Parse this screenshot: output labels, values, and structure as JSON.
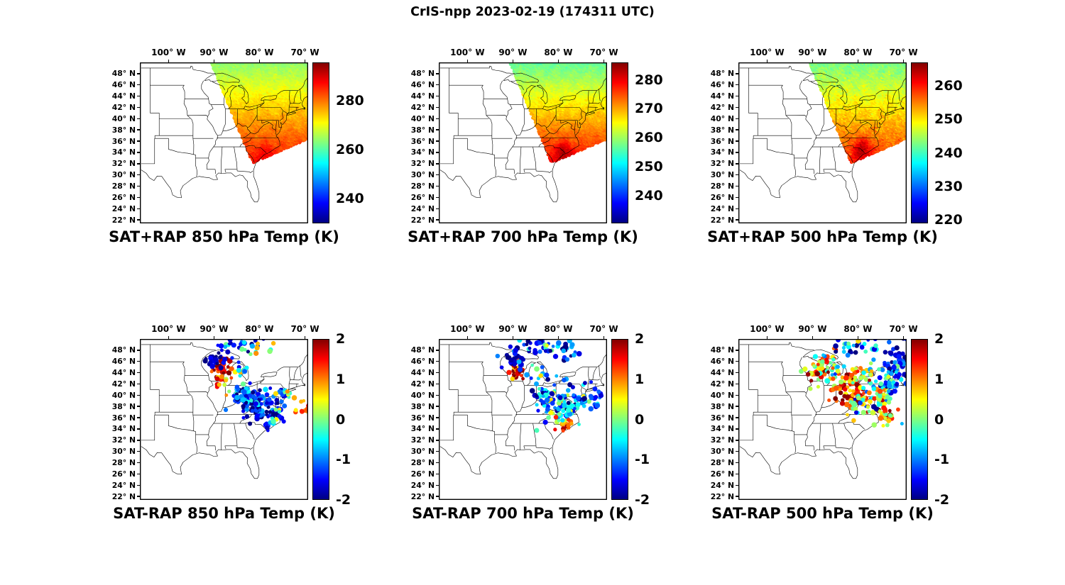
{
  "figure": {
    "title": "CrIS-npp 2023-02-19 (174311 UTC)",
    "background": "#ffffff",
    "text_color": "#000000"
  },
  "axes": {
    "lon_range": [
      -106.3,
      -69.3
    ],
    "lat_range": [
      21.4,
      50.0
    ],
    "x_tick_lons": [
      -100,
      -90,
      -80,
      -70
    ],
    "x_tick_labels": [
      "100° W",
      "90° W",
      "80° W",
      "70° W"
    ],
    "y_tick_lats": [
      48,
      46,
      44,
      42,
      40,
      38,
      36,
      34,
      32,
      30,
      28,
      26,
      24,
      22
    ],
    "y_tick_labels": [
      "48° N",
      "46° N",
      "44° N",
      "42° N",
      "40° N",
      "38° N",
      "36° N",
      "34° N",
      "32° N",
      "30° N",
      "28° N",
      "26° N",
      "24° N",
      "22° N"
    ]
  },
  "chart_data": [
    {
      "id": "sat-plus-rap-850",
      "type": "heatmap",
      "row": 0,
      "col": 0,
      "title": "SAT+RAP 850 hPa Temp (K)",
      "colormap": "jet",
      "clim": [
        230,
        295.5
      ],
      "colorbar_ticks": [
        280,
        260,
        240
      ],
      "swath": {
        "nw": [
          [
            -90.6,
            49.8
          ],
          [
            -83.0,
            35.0
          ]
        ],
        "se": [
          [
            -79.0,
            33.0
          ],
          [
            -67.5,
            37.0
          ]
        ]
      },
      "field": {
        "t_ref": 264.0,
        "lat_ref": 49.8,
        "lapse": 1.3,
        "noise": 1.0,
        "hot": {
          "lon": -78.6,
          "lat": 34.2,
          "amp": 4.0,
          "r": 1.0
        }
      }
    },
    {
      "id": "sat-plus-rap-700",
      "type": "heatmap",
      "row": 0,
      "col": 1,
      "title": "SAT+RAP 700 hPa Temp (K)",
      "colormap": "jet",
      "clim": [
        230.5,
        286
      ],
      "colorbar_ticks": [
        280,
        270,
        260,
        250,
        240
      ],
      "swath": {
        "nw": [
          [
            -90.6,
            49.8
          ],
          [
            -83.0,
            35.0
          ]
        ],
        "se": [
          [
            -79.0,
            33.0
          ],
          [
            -67.5,
            37.0
          ]
        ]
      },
      "field": {
        "t_ref": 257.0,
        "lat_ref": 49.8,
        "lapse": 1.28,
        "noise": 0.9,
        "hot": {
          "lon": -78.8,
          "lat": 34.4,
          "amp": 7.0,
          "r": 1.2
        }
      }
    },
    {
      "id": "sat-plus-rap-500",
      "type": "heatmap",
      "row": 0,
      "col": 2,
      "title": "SAT+RAP 500 hPa Temp (K)",
      "colormap": "jet",
      "clim": [
        219,
        267
      ],
      "colorbar_ticks": [
        260,
        250,
        240,
        230,
        220
      ],
      "swath": {
        "nw": [
          [
            -90.6,
            49.8
          ],
          [
            -83.0,
            35.0
          ]
        ],
        "se": [
          [
            -79.0,
            33.0
          ],
          [
            -67.5,
            37.0
          ]
        ]
      },
      "field": {
        "t_ref": 242.8,
        "lat_ref": 49.8,
        "lapse": 0.93,
        "noise": 1.1,
        "hot": {
          "lon": -79.0,
          "lat": 34.8,
          "amp": 8.0,
          "r": 1.4
        }
      }
    },
    {
      "id": "sat-minus-rap-850",
      "type": "scatter",
      "row": 1,
      "col": 0,
      "title": "SAT-RAP 850 hPa Temp (K)",
      "colormap": "jet",
      "clim": [
        -2,
        2
      ],
      "colorbar_ticks": [
        2,
        1,
        0,
        -1,
        -2
      ],
      "dot_radius_px": 3.1,
      "clusters": [
        {
          "lon": -88.6,
          "lat": 44.5,
          "sx": 1.0,
          "sy": 1.1,
          "n": 45,
          "mean": 1.5,
          "std": 0.5
        },
        {
          "lon": -89.6,
          "lat": 45.9,
          "sx": 1.2,
          "sy": 0.7,
          "n": 22,
          "mean": -1.7,
          "std": 0.3
        },
        {
          "lon": -86.0,
          "lat": 48.7,
          "sx": 2.6,
          "sy": 0.7,
          "n": 24,
          "mean": -1.5,
          "std": 0.6
        },
        {
          "lon": -80.6,
          "lat": 48.5,
          "sx": 1.6,
          "sy": 0.8,
          "n": 14,
          "mean": -0.7,
          "std": 1.0
        },
        {
          "lon": -79.6,
          "lat": 37.9,
          "sx": 2.4,
          "sy": 1.5,
          "n": 100,
          "mean": -1.5,
          "std": 0.45
        },
        {
          "lon": -82.6,
          "lat": 39.4,
          "sx": 1.5,
          "sy": 1.0,
          "n": 40,
          "mean": -1.3,
          "std": 0.6
        },
        {
          "lon": -76.5,
          "lat": 36.3,
          "sx": 1.0,
          "sy": 0.8,
          "n": 18,
          "mean": -1.0,
          "std": 0.9
        },
        {
          "lon": -70.3,
          "lat": 37.4,
          "sx": 0.9,
          "sy": 0.7,
          "n": 14,
          "mean": 1.2,
          "std": 0.6
        },
        {
          "lon": -74.2,
          "lat": 40.2,
          "sx": 0.7,
          "sy": 0.6,
          "n": 10,
          "mean": 0.1,
          "std": 0.7
        },
        {
          "lon": -85.3,
          "lat": 41.2,
          "sx": 1.3,
          "sy": 0.9,
          "n": 12,
          "mean": -0.5,
          "std": 0.8
        },
        {
          "lon": -84.0,
          "lat": 44.3,
          "sx": 1.0,
          "sy": 0.8,
          "n": 10,
          "mean": -1.1,
          "std": 0.7
        }
      ]
    },
    {
      "id": "sat-minus-rap-700",
      "type": "scatter",
      "row": 1,
      "col": 1,
      "title": "SAT-RAP 700 hPa Temp (K)",
      "colormap": "jet",
      "clim": [
        -2,
        2
      ],
      "colorbar_ticks": [
        2,
        1,
        0,
        -1,
        -2
      ],
      "dot_radius_px": 3.1,
      "clusters": [
        {
          "lon": -89.0,
          "lat": 44.3,
          "sx": 0.9,
          "sy": 1.0,
          "n": 32,
          "mean": 1.3,
          "std": 0.6
        },
        {
          "lon": -89.8,
          "lat": 46.2,
          "sx": 1.3,
          "sy": 0.9,
          "n": 26,
          "mean": -1.6,
          "std": 0.4
        },
        {
          "lon": -85.0,
          "lat": 48.8,
          "sx": 3.0,
          "sy": 0.8,
          "n": 36,
          "mean": -1.3,
          "std": 0.7
        },
        {
          "lon": -78.6,
          "lat": 48.3,
          "sx": 1.8,
          "sy": 1.0,
          "n": 20,
          "mean": -1.1,
          "std": 0.9
        },
        {
          "lon": -79.2,
          "lat": 38.2,
          "sx": 2.4,
          "sy": 1.6,
          "n": 85,
          "mean": -0.7,
          "std": 0.7
        },
        {
          "lon": -83.0,
          "lat": 39.8,
          "sx": 1.4,
          "sy": 1.0,
          "n": 30,
          "mean": -1.0,
          "std": 0.7
        },
        {
          "lon": -79.0,
          "lat": 34.7,
          "sx": 1.1,
          "sy": 0.7,
          "n": 20,
          "mean": 1.0,
          "std": 0.6
        },
        {
          "lon": -71.8,
          "lat": 40.3,
          "sx": 1.1,
          "sy": 1.2,
          "n": 18,
          "mean": -1.4,
          "std": 0.6
        },
        {
          "lon": -84.3,
          "lat": 43.3,
          "sx": 1.2,
          "sy": 0.9,
          "n": 14,
          "mean": -0.7,
          "std": 0.9
        },
        {
          "lon": -74.9,
          "lat": 38.9,
          "sx": 0.8,
          "sy": 0.8,
          "n": 12,
          "mean": -1.2,
          "std": 0.7
        }
      ]
    },
    {
      "id": "sat-minus-rap-500",
      "type": "scatter",
      "row": 1,
      "col": 2,
      "title": "SAT-RAP 500 hPa Temp (K)",
      "colormap": "jet",
      "clim": [
        -2,
        2
      ],
      "colorbar_ticks": [
        2,
        1,
        0,
        -1,
        -2
      ],
      "dot_radius_px": 3.1,
      "clusters": [
        {
          "lon": -81.2,
          "lat": 41.2,
          "sx": 2.1,
          "sy": 1.6,
          "n": 75,
          "mean": 1.4,
          "std": 0.6
        },
        {
          "lon": -85.8,
          "lat": 44.2,
          "sx": 2.0,
          "sy": 1.4,
          "n": 40,
          "mean": 0.3,
          "std": 0.9
        },
        {
          "lon": -78.6,
          "lat": 43.6,
          "sx": 1.5,
          "sy": 1.1,
          "n": 28,
          "mean": 0.7,
          "std": 0.9
        },
        {
          "lon": -69.9,
          "lat": 46.8,
          "sx": 1.9,
          "sy": 1.6,
          "n": 60,
          "mean": -1.6,
          "std": 0.4
        },
        {
          "lon": -72.6,
          "lat": 42.6,
          "sx": 1.5,
          "sy": 1.3,
          "n": 45,
          "mean": -0.9,
          "std": 0.7
        },
        {
          "lon": -75.3,
          "lat": 39.6,
          "sx": 1.3,
          "sy": 1.2,
          "n": 40,
          "mean": -0.3,
          "std": 0.9
        },
        {
          "lon": -87.6,
          "lat": 45.4,
          "sx": 1.6,
          "sy": 1.3,
          "n": 24,
          "mean": 0.2,
          "std": 1.0
        },
        {
          "lon": -80.3,
          "lat": 48.8,
          "sx": 2.6,
          "sy": 0.8,
          "n": 30,
          "mean": -0.7,
          "std": 1.0
        },
        {
          "lon": -74.2,
          "lat": 36.2,
          "sx": 1.3,
          "sy": 0.9,
          "n": 30,
          "mean": 0.9,
          "std": 0.8
        },
        {
          "lon": -78.8,
          "lat": 38.3,
          "sx": 1.6,
          "sy": 1.2,
          "n": 40,
          "mean": 0.0,
          "std": 0.9
        },
        {
          "lon": -90.6,
          "lat": 44.2,
          "sx": 1.1,
          "sy": 1.1,
          "n": 12,
          "mean": 0.6,
          "std": 0.9
        }
      ]
    }
  ]
}
